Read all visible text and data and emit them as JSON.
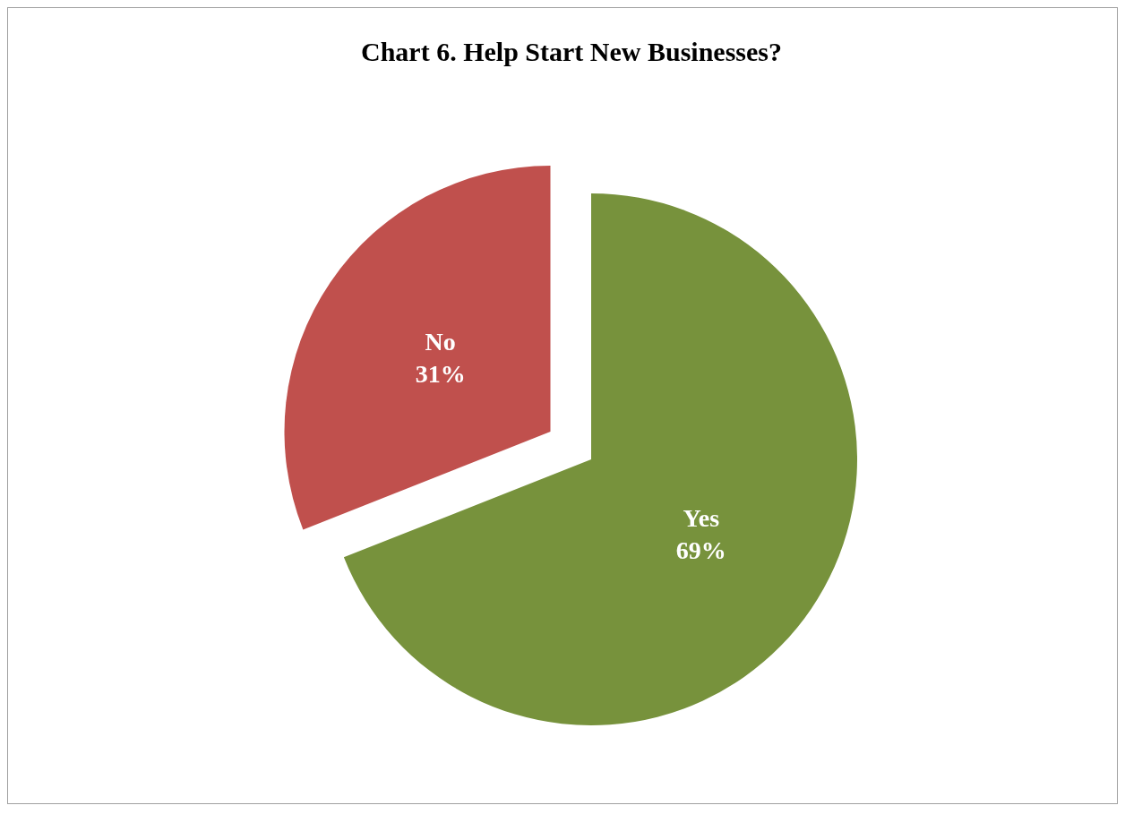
{
  "chart_data": {
    "type": "pie",
    "title": "Chart 6. Help Start New Businesses?",
    "categories": [
      "Yes",
      "No"
    ],
    "values": [
      69,
      31
    ],
    "value_labels": [
      "69%",
      "31%"
    ],
    "colors": [
      "#77923c",
      "#c0504d"
    ]
  }
}
